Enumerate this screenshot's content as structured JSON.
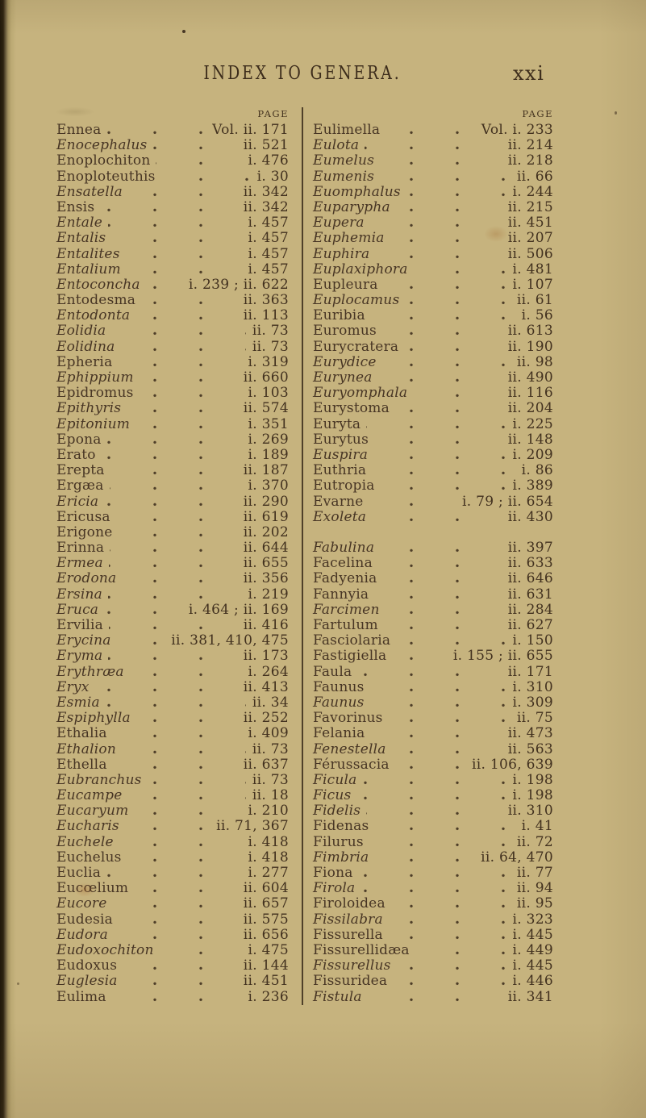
{
  "header": {
    "title": "INDEX TO GENERA.",
    "folio": "xxi"
  },
  "colors": {
    "paper": "#c6b37e",
    "ink": "#473524",
    "edge": "#20180a",
    "divider": "#3a2c1a"
  },
  "columns": {
    "left": {
      "page_label": "PAGE",
      "entries": [
        {
          "name": "Ennea",
          "italic": false,
          "ref": "Vol. ii. 171"
        },
        {
          "name": "Enocephalus",
          "italic": true,
          "ref": "ii. 521"
        },
        {
          "name": "Enoplochiton",
          "italic": false,
          "ref": "i. 476"
        },
        {
          "name": "Enoploteuthis",
          "italic": false,
          "ref": "i. 30"
        },
        {
          "name": "Ensatella",
          "italic": true,
          "ref": "ii. 342"
        },
        {
          "name": "Ensis",
          "italic": false,
          "ref": "ii. 342"
        },
        {
          "name": "Entale",
          "italic": true,
          "ref": "i. 457"
        },
        {
          "name": "Entalis",
          "italic": true,
          "ref": "i. 457"
        },
        {
          "name": "Entalites",
          "italic": true,
          "ref": "i. 457"
        },
        {
          "name": "Entalium",
          "italic": true,
          "ref": "i. 457"
        },
        {
          "name": "Entoconcha",
          "italic": true,
          "ref": "i. 239 ; ii. 622"
        },
        {
          "name": "Entodesma",
          "italic": false,
          "ref": "ii. 363"
        },
        {
          "name": "Entodonta",
          "italic": true,
          "ref": "ii. 113"
        },
        {
          "name": "Eolidia",
          "italic": true,
          "ref": "ii. 73"
        },
        {
          "name": "Eolidina",
          "italic": true,
          "ref": "ii. 73"
        },
        {
          "name": "Epheria",
          "italic": false,
          "ref": "i. 319"
        },
        {
          "name": "Ephippium",
          "italic": true,
          "ref": "ii. 660"
        },
        {
          "name": "Epidromus",
          "italic": false,
          "ref": "i. 103"
        },
        {
          "name": "Epithyris",
          "italic": true,
          "ref": "ii. 574"
        },
        {
          "name": "Epitonium",
          "italic": true,
          "ref": "i. 351"
        },
        {
          "name": "Epona",
          "italic": false,
          "ref": "i. 269"
        },
        {
          "name": "Erato",
          "italic": false,
          "ref": "i. 189"
        },
        {
          "name": "Erepta",
          "italic": false,
          "ref": "ii. 187"
        },
        {
          "name": "Ergæa",
          "italic": false,
          "ref": "i. 370"
        },
        {
          "name": "Ericia",
          "italic": true,
          "ref": "ii. 290"
        },
        {
          "name": "Ericusa",
          "italic": false,
          "ref": "ii. 619"
        },
        {
          "name": "Erigone",
          "italic": false,
          "ref": "ii. 202"
        },
        {
          "name": "Erinna",
          "italic": false,
          "ref": "ii. 644"
        },
        {
          "name": "Ermea",
          "italic": true,
          "ref": "ii. 655"
        },
        {
          "name": "Erodona",
          "italic": true,
          "ref": "ii. 356"
        },
        {
          "name": "Ersina",
          "italic": true,
          "ref": "i. 219"
        },
        {
          "name": "Eruca",
          "italic": true,
          "ref": "i. 464 ; ii. 169"
        },
        {
          "name": "Ervilia",
          "italic": false,
          "ref": "ii. 416"
        },
        {
          "name": "Erycina",
          "italic": true,
          "ref": "ii. 381, 410, 475"
        },
        {
          "name": "Eryma",
          "italic": true,
          "ref": "ii. 173"
        },
        {
          "name": "Erythræa",
          "italic": true,
          "ref": "i. 264"
        },
        {
          "name": "Eryx",
          "italic": true,
          "ref": "ii. 413"
        },
        {
          "name": "Esmia",
          "italic": true,
          "ref": "ii. 34"
        },
        {
          "name": "Espiphylla",
          "italic": true,
          "ref": "ii. 252"
        },
        {
          "name": "Ethalia",
          "italic": false,
          "ref": "i. 409"
        },
        {
          "name": "Ethalion",
          "italic": true,
          "ref": "ii. 73"
        },
        {
          "name": "Ethella",
          "italic": false,
          "ref": "ii. 637"
        },
        {
          "name": "Eubranchus",
          "italic": true,
          "ref": "ii. 73"
        },
        {
          "name": "Eucampe",
          "italic": true,
          "ref": "ii. 18"
        },
        {
          "name": "Eucaryum",
          "italic": true,
          "ref": "i. 210"
        },
        {
          "name": "Eucharis",
          "italic": true,
          "ref": "ii. 71, 367"
        },
        {
          "name": "Euchele",
          "italic": true,
          "ref": "i. 418"
        },
        {
          "name": "Euchelus",
          "italic": false,
          "ref": "i. 418"
        },
        {
          "name": "Euclia",
          "italic": false,
          "ref": "i. 277"
        },
        {
          "name": "Eucœlium",
          "italic": false,
          "ref": "ii. 604"
        },
        {
          "name": "Eucore",
          "italic": true,
          "ref": "ii. 657"
        },
        {
          "name": "Eudesia",
          "italic": false,
          "ref": "ii. 575"
        },
        {
          "name": "Eudora",
          "italic": true,
          "ref": "ii. 656"
        },
        {
          "name": "Eudoxochiton",
          "italic": true,
          "ref": "i. 475"
        },
        {
          "name": "Eudoxus",
          "italic": false,
          "ref": "ii. 144"
        },
        {
          "name": "Euglesia",
          "italic": true,
          "ref": "ii. 451"
        },
        {
          "name": "Eulima",
          "italic": false,
          "ref": "i. 236"
        }
      ]
    },
    "right": {
      "page_label": "PAGE",
      "entries": [
        {
          "name": "Eulimella",
          "italic": false,
          "ref": "Vol. i. 233"
        },
        {
          "name": "Eulota",
          "italic": true,
          "ref": "ii. 214"
        },
        {
          "name": "Eumelus",
          "italic": true,
          "ref": "ii. 218"
        },
        {
          "name": "Eumenis",
          "italic": true,
          "ref": "ii. 66"
        },
        {
          "name": "Euomphalus",
          "italic": true,
          "ref": "i. 244"
        },
        {
          "name": "Euparypha",
          "italic": true,
          "ref": "ii. 215"
        },
        {
          "name": "Eupera",
          "italic": true,
          "ref": "ii. 451"
        },
        {
          "name": "Euphemia",
          "italic": true,
          "ref": "ii. 207"
        },
        {
          "name": "Euphira",
          "italic": true,
          "ref": "ii. 506"
        },
        {
          "name": "Euplaxiphora",
          "italic": true,
          "ref": "i. 481"
        },
        {
          "name": "Eupleura",
          "italic": false,
          "ref": "i. 107"
        },
        {
          "name": "Euplocamus",
          "italic": true,
          "ref": "ii. 61"
        },
        {
          "name": "Euribia",
          "italic": false,
          "ref": "i. 56"
        },
        {
          "name": "Euromus",
          "italic": false,
          "ref": "ii. 613"
        },
        {
          "name": "Eurycratera",
          "italic": false,
          "ref": "ii. 190"
        },
        {
          "name": "Eurydice",
          "italic": true,
          "ref": "ii. 98"
        },
        {
          "name": "Eurynea",
          "italic": true,
          "ref": "ii. 490"
        },
        {
          "name": "Euryomphala",
          "italic": true,
          "ref": "ii. 116"
        },
        {
          "name": "Eurystoma",
          "italic": false,
          "ref": "ii. 204"
        },
        {
          "name": "Euryta",
          "italic": false,
          "ref": "i. 225"
        },
        {
          "name": "Eurytus",
          "italic": false,
          "ref": "ii. 148"
        },
        {
          "name": "Euspira",
          "italic": true,
          "ref": "i. 209"
        },
        {
          "name": "Euthria",
          "italic": false,
          "ref": "i. 86"
        },
        {
          "name": "Eutropia",
          "italic": false,
          "ref": "i. 389"
        },
        {
          "name": "Evarne",
          "italic": false,
          "ref": "i. 79 ; ii. 654"
        },
        {
          "name": "Exoleta",
          "italic": true,
          "ref": "ii. 430"
        },
        {
          "gap": true
        },
        {
          "name": "Fabulina",
          "italic": true,
          "ref": "ii. 397"
        },
        {
          "name": "Facelina",
          "italic": false,
          "ref": "ii. 633"
        },
        {
          "name": "Fadyenia",
          "italic": false,
          "ref": "ii. 646"
        },
        {
          "name": "Fannyia",
          "italic": false,
          "ref": "ii. 631"
        },
        {
          "name": "Farcimen",
          "italic": true,
          "ref": "ii. 284"
        },
        {
          "name": "Fartulum",
          "italic": false,
          "ref": "ii. 627"
        },
        {
          "name": "Fasciolaria",
          "italic": false,
          "ref": "i. 150"
        },
        {
          "name": "Fastigiella",
          "italic": false,
          "ref": "i. 155 ; ii. 655"
        },
        {
          "name": "Faula",
          "italic": false,
          "ref": "ii. 171"
        },
        {
          "name": "Faunus",
          "italic": false,
          "ref": "i. 310"
        },
        {
          "name": "Faunus",
          "italic": true,
          "ref": "i. 309"
        },
        {
          "name": "Favorinus",
          "italic": false,
          "ref": "ii. 75"
        },
        {
          "name": "Felania",
          "italic": false,
          "ref": "ii. 473"
        },
        {
          "name": "Fenestella",
          "italic": true,
          "ref": "ii. 563"
        },
        {
          "name": "Férussacia",
          "italic": false,
          "ref": "ii. 106, 639"
        },
        {
          "name": "Ficula",
          "italic": true,
          "ref": "i. 198"
        },
        {
          "name": "Ficus",
          "italic": true,
          "ref": "i. 198"
        },
        {
          "name": "Fidelis",
          "italic": true,
          "ref": "ii. 310"
        },
        {
          "name": "Fidenas",
          "italic": false,
          "ref": "i. 41"
        },
        {
          "name": "Filurus",
          "italic": false,
          "ref": "ii. 72"
        },
        {
          "name": "Fimbria",
          "italic": true,
          "ref": "ii. 64, 470"
        },
        {
          "name": "Fiona",
          "italic": false,
          "ref": "ii. 77"
        },
        {
          "name": "Firola",
          "italic": true,
          "ref": "ii. 94"
        },
        {
          "name": "Firoloidea",
          "italic": false,
          "ref": "ii. 95"
        },
        {
          "name": "Fissilabra",
          "italic": true,
          "ref": "i. 323"
        },
        {
          "name": "Fissurella",
          "italic": false,
          "ref": "i. 445"
        },
        {
          "name": "Fissurellidæa",
          "italic": false,
          "ref": "i. 449"
        },
        {
          "name": "Fissurellus",
          "italic": true,
          "ref": "i. 445"
        },
        {
          "name": "Fissuridea",
          "italic": false,
          "ref": "i. 446"
        },
        {
          "name": "Fistula",
          "italic": true,
          "ref": "ii. 341"
        }
      ]
    }
  }
}
